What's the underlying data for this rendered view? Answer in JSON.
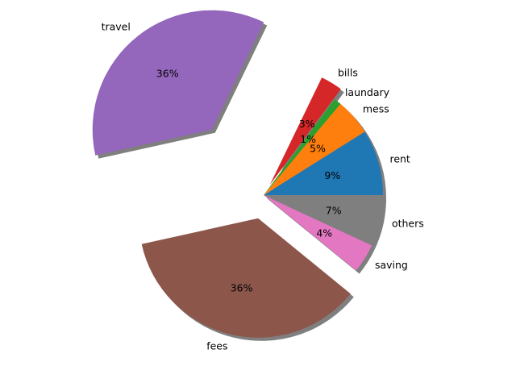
{
  "chart_data": {
    "type": "pie",
    "title": "",
    "categories": [
      "rent",
      "mess",
      "laundary",
      "bills",
      "travel",
      "fees",
      "saving",
      "others"
    ],
    "values": [
      9,
      5,
      1,
      3,
      36,
      36,
      4,
      7
    ],
    "labels_pct": [
      "9%",
      "5%",
      "1%",
      "3%",
      "36%",
      "36%",
      "4%",
      "7%"
    ],
    "colors": [
      "#1f77b4",
      "#ff7f0e",
      "#2ca02c",
      "#d62728",
      "#9467bd",
      "#8c564b",
      "#e377c2",
      "#7f7f7f"
    ],
    "explode": [
      0,
      0,
      0,
      0.1,
      0.7,
      0.2,
      0,
      0
    ],
    "shadow": true,
    "start_angle_deg": 0,
    "counterclockwise": true
  }
}
